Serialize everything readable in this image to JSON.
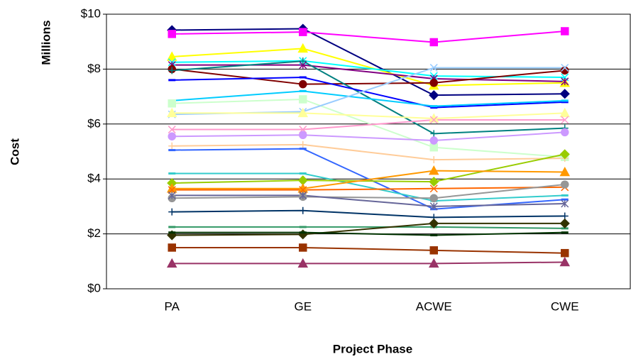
{
  "chart_data": {
    "type": "line",
    "y_axis_title": "Cost",
    "y_axis_subtitle": "Millions",
    "x_axis_title": "Project Phase",
    "categories": [
      "PA",
      "GE",
      "ACWE",
      "CWE"
    ],
    "ylim": [
      0,
      10
    ],
    "yticks": [
      {
        "value": 0,
        "label": "$0"
      },
      {
        "value": 2,
        "label": "$2"
      },
      {
        "value": 4,
        "label": "$4"
      },
      {
        "value": 6,
        "label": "$6"
      },
      {
        "value": 8,
        "label": "$8"
      },
      {
        "value": 10,
        "label": "$10"
      }
    ],
    "grid": true,
    "series": [
      {
        "color": "#000080",
        "marker": "diamond",
        "values": [
          9.42,
          9.47,
          7.05,
          7.1
        ]
      },
      {
        "color": "#ff00ff",
        "marker": "square",
        "values": [
          9.28,
          9.35,
          8.98,
          9.38
        ]
      },
      {
        "color": "#ffff00",
        "marker": "triangle",
        "values": [
          8.45,
          8.75,
          7.4,
          7.5
        ]
      },
      {
        "color": "#00ffff",
        "marker": "x",
        "values": [
          8.25,
          8.3,
          7.75,
          7.7
        ]
      },
      {
        "color": "#800080",
        "marker": "star",
        "values": [
          8.15,
          8.15,
          7.65,
          7.55
        ]
      },
      {
        "color": "#800000",
        "marker": "circle",
        "values": [
          8.0,
          7.45,
          7.5,
          7.95
        ]
      },
      {
        "color": "#008080",
        "marker": "plus",
        "values": [
          7.95,
          8.29,
          5.65,
          5.85
        ]
      },
      {
        "color": "#0000ff",
        "marker": "dash",
        "values": [
          7.6,
          7.7,
          6.6,
          6.8
        ]
      },
      {
        "color": "#00ccff",
        "marker": "dash",
        "values": [
          6.85,
          7.2,
          6.65,
          6.85
        ]
      },
      {
        "color": "#ccffcc",
        "marker": "square",
        "values": [
          6.75,
          6.9,
          5.15,
          4.8
        ]
      },
      {
        "color": "#99ccff",
        "marker": "x",
        "values": [
          6.35,
          6.45,
          8.05,
          8.05
        ]
      },
      {
        "color": "#ffff99",
        "marker": "triangle",
        "values": [
          6.4,
          6.4,
          6.2,
          6.4
        ]
      },
      {
        "color": "#ff99cc",
        "marker": "x",
        "values": [
          5.8,
          5.8,
          6.15,
          6.15
        ]
      },
      {
        "color": "#cc99ff",
        "marker": "circle",
        "values": [
          5.55,
          5.6,
          5.4,
          5.7
        ]
      },
      {
        "color": "#ffcc99",
        "marker": "plus",
        "values": [
          5.2,
          5.25,
          4.7,
          4.75
        ]
      },
      {
        "color": "#3366ff",
        "marker": "dash",
        "values": [
          5.05,
          5.1,
          2.9,
          3.25
        ]
      },
      {
        "color": "#33cccc",
        "marker": "dash",
        "values": [
          4.2,
          4.2,
          3.2,
          3.4
        ]
      },
      {
        "color": "#99cc00",
        "marker": "diamond",
        "values": [
          3.85,
          3.95,
          3.9,
          4.9
        ]
      },
      {
        "color": "#ff9900",
        "marker": "triangle",
        "values": [
          3.65,
          3.65,
          4.3,
          4.25
        ]
      },
      {
        "color": "#ff6600",
        "marker": "x",
        "values": [
          3.6,
          3.6,
          3.65,
          3.7
        ]
      },
      {
        "color": "#969696",
        "marker": "circle",
        "values": [
          3.3,
          3.35,
          3.3,
          3.8
        ]
      },
      {
        "color": "#666699",
        "marker": "star",
        "values": [
          3.4,
          3.4,
          3.0,
          3.1
        ]
      },
      {
        "color": "#003366",
        "marker": "plus",
        "values": [
          2.8,
          2.85,
          2.6,
          2.65
        ]
      },
      {
        "color": "#339966",
        "marker": "dash",
        "values": [
          2.25,
          2.25,
          2.25,
          2.2
        ]
      },
      {
        "color": "#333300",
        "marker": "diamond",
        "values": [
          1.95,
          1.98,
          2.38,
          2.38
        ]
      },
      {
        "color": "#003300",
        "marker": "dash",
        "values": [
          2.05,
          2.05,
          1.95,
          2.05
        ]
      },
      {
        "color": "#993300",
        "marker": "square",
        "values": [
          1.5,
          1.5,
          1.4,
          1.3
        ]
      },
      {
        "color": "#993366",
        "marker": "triangle",
        "values": [
          0.92,
          0.92,
          0.92,
          0.97
        ]
      }
    ]
  }
}
